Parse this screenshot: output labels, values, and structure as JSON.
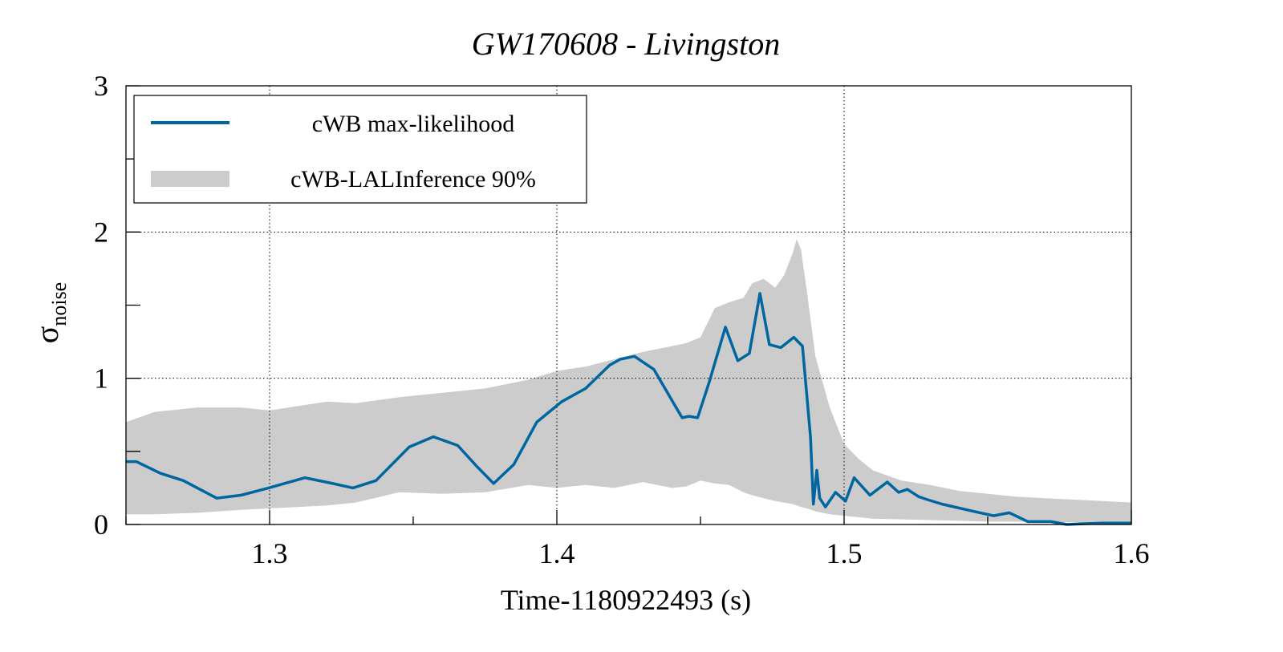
{
  "chart_data": {
    "type": "line",
    "title": "GW170608 - Livingston",
    "xlabel": "Time-1180922493 (s)",
    "ylabel": "σ",
    "ylabel_subscript": "noise",
    "xlim": [
      1.25,
      1.6
    ],
    "ylim": [
      0,
      3
    ],
    "xticks": [
      1.3,
      1.4,
      1.5,
      1.6
    ],
    "xtick_labels": [
      "1.3",
      "1.4",
      "1.5",
      "1.6"
    ],
    "xticks_minor": [
      1.25,
      1.35,
      1.45,
      1.55
    ],
    "yticks": [
      0,
      1,
      2,
      3
    ],
    "ytick_labels": [
      "0",
      "1",
      "2",
      "3"
    ],
    "yticks_minor": [
      0.5,
      1.5,
      2.5
    ],
    "grid": true,
    "legend": {
      "placement": "top-left",
      "entries": [
        {
          "label": "cWB max-likelihood",
          "kind": "line",
          "color": "#0066a0"
        },
        {
          "label": "cWB-LALInference 90%",
          "kind": "band",
          "color": "#cccccc"
        }
      ]
    },
    "series": [
      {
        "name": "cWB max-likelihood",
        "color": "#0066a0",
        "x": [
          1.25,
          1.2536,
          1.262,
          1.27,
          1.2816,
          1.29,
          1.2997,
          1.3123,
          1.322,
          1.329,
          1.337,
          1.3486,
          1.357,
          1.3655,
          1.372,
          1.378,
          1.385,
          1.393,
          1.4017,
          1.41,
          1.4184,
          1.422,
          1.427,
          1.4338,
          1.4436,
          1.446,
          1.449,
          1.453,
          1.4587,
          1.463,
          1.467,
          1.4707,
          1.474,
          1.478,
          1.4825,
          1.4855,
          1.4883,
          1.4893,
          1.4905,
          1.4915,
          1.4935,
          1.497,
          1.5005,
          1.5035,
          1.509,
          1.515,
          1.519,
          1.522,
          1.526,
          1.529,
          1.534,
          1.545,
          1.552,
          1.5575,
          1.564,
          1.572,
          1.5775,
          1.583,
          1.59,
          1.6
        ],
        "y": [
          0.43,
          0.43,
          0.35,
          0.3,
          0.18,
          0.2,
          0.25,
          0.32,
          0.28,
          0.25,
          0.3,
          0.53,
          0.6,
          0.54,
          0.4,
          0.28,
          0.41,
          0.7,
          0.84,
          0.93,
          1.09,
          1.13,
          1.15,
          1.06,
          0.73,
          0.74,
          0.73,
          0.97,
          1.35,
          1.12,
          1.17,
          1.58,
          1.23,
          1.21,
          1.28,
          1.22,
          0.6,
          0.14,
          0.37,
          0.18,
          0.12,
          0.22,
          0.16,
          0.32,
          0.2,
          0.29,
          0.22,
          0.24,
          0.19,
          0.17,
          0.14,
          0.09,
          0.06,
          0.08,
          0.02,
          0.02,
          0.0,
          0.005,
          0.01,
          0.01
        ]
      }
    ],
    "band": {
      "name": "cWB-LALInference 90%",
      "color": "#cccccc",
      "x": [
        1.25,
        1.26,
        1.275,
        1.29,
        1.3,
        1.31,
        1.32,
        1.33,
        1.345,
        1.36,
        1.375,
        1.39,
        1.4,
        1.41,
        1.42,
        1.43,
        1.44,
        1.445,
        1.45,
        1.455,
        1.46,
        1.465,
        1.468,
        1.472,
        1.476,
        1.479,
        1.482,
        1.4835,
        1.485,
        1.487,
        1.49,
        1.495,
        1.5,
        1.505,
        1.51,
        1.52,
        1.53,
        1.54,
        1.55,
        1.56,
        1.57,
        1.58,
        1.59,
        1.6
      ],
      "upper": [
        0.7,
        0.77,
        0.8,
        0.8,
        0.78,
        0.81,
        0.84,
        0.83,
        0.87,
        0.9,
        0.93,
        0.99,
        1.05,
        1.08,
        1.13,
        1.18,
        1.22,
        1.24,
        1.28,
        1.48,
        1.52,
        1.55,
        1.65,
        1.68,
        1.62,
        1.7,
        1.85,
        1.95,
        1.88,
        1.6,
        1.15,
        0.8,
        0.55,
        0.45,
        0.37,
        0.3,
        0.27,
        0.23,
        0.21,
        0.19,
        0.18,
        0.17,
        0.16,
        0.15
      ],
      "lower": [
        0.07,
        0.07,
        0.08,
        0.1,
        0.11,
        0.12,
        0.13,
        0.15,
        0.22,
        0.21,
        0.22,
        0.27,
        0.25,
        0.27,
        0.25,
        0.29,
        0.25,
        0.26,
        0.3,
        0.28,
        0.27,
        0.22,
        0.2,
        0.18,
        0.16,
        0.15,
        0.14,
        0.13,
        0.12,
        0.11,
        0.09,
        0.07,
        0.06,
        0.05,
        0.04,
        0.035,
        0.03,
        0.025,
        0.02,
        0.02,
        0.015,
        0.015,
        0.01,
        0.01
      ]
    }
  }
}
